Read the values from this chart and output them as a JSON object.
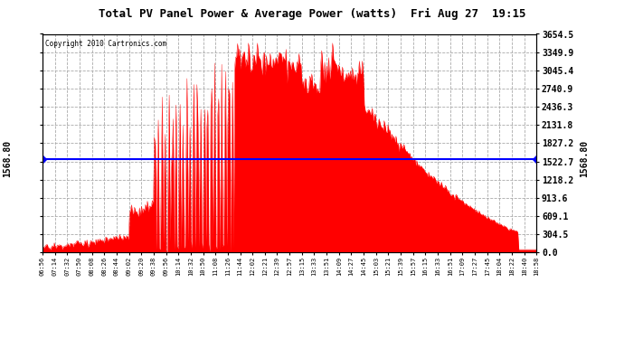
{
  "title": "Total PV Panel Power & Average Power (watts)  Fri Aug 27  19:15",
  "copyright": "Copyright 2010 Cartronics.com",
  "avg_power": 1568.8,
  "y_max": 3654.5,
  "y_min": 0.0,
  "y_ticks": [
    0.0,
    304.5,
    609.1,
    913.6,
    1218.2,
    1522.7,
    1827.2,
    2131.8,
    2436.3,
    2740.9,
    3045.4,
    3349.9,
    3654.5
  ],
  "bg_color": "#ffffff",
  "fill_color": "#ff0000",
  "line_color": "#0000ff",
  "plot_bg_color": "#ffffff",
  "grid_color": "#aaaaaa",
  "x_labels": [
    "06:56",
    "07:14",
    "07:32",
    "07:50",
    "08:08",
    "08:26",
    "08:44",
    "09:02",
    "09:20",
    "09:38",
    "09:56",
    "10:14",
    "10:32",
    "10:50",
    "11:08",
    "11:26",
    "11:44",
    "12:02",
    "12:21",
    "12:39",
    "12:57",
    "13:15",
    "13:33",
    "13:51",
    "14:09",
    "14:27",
    "14:45",
    "15:03",
    "15:21",
    "15:39",
    "15:57",
    "16:15",
    "16:33",
    "16:51",
    "17:09",
    "17:27",
    "17:45",
    "18:04",
    "18:22",
    "18:40",
    "18:58"
  ]
}
